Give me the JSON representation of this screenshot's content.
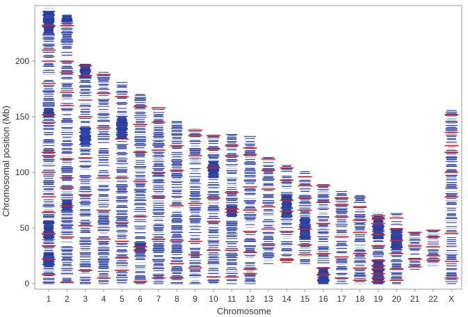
{
  "chart_data": {
    "type": "ideogram-band-chart",
    "title": "",
    "xlabel": "Chromosome",
    "ylabel": "Chromosomal position (Mb)",
    "ylim": [
      -5,
      250
    ],
    "yticks": [
      0,
      50,
      100,
      150,
      200
    ],
    "grid": false,
    "legend": null,
    "categories": [
      "1",
      "2",
      "3",
      "4",
      "5",
      "6",
      "7",
      "8",
      "9",
      "10",
      "11",
      "12",
      "13",
      "14",
      "15",
      "16",
      "17",
      "18",
      "19",
      "20",
      "21",
      "22",
      "X"
    ],
    "chromosome_length_mb": [
      248,
      242,
      198,
      190,
      181,
      171,
      159,
      146,
      140,
      135,
      135,
      133,
      114,
      107,
      101,
      90,
      83,
      80,
      64,
      64,
      47,
      50,
      156
    ],
    "band_start_mb": [
      0,
      0,
      0,
      0,
      0,
      0,
      0,
      0,
      0,
      0,
      0,
      0,
      18,
      18,
      18,
      0,
      0,
      0,
      0,
      0,
      12,
      15,
      0
    ],
    "colors": {
      "blue": "#2b3f9e",
      "red": "#d62020",
      "grey": "#b9bfd1",
      "axis": "#999999"
    },
    "red_bands_mb": {
      "1": [
        8,
        22,
        34,
        45,
        64,
        78,
        100,
        115,
        118,
        145,
        152,
        180,
        200,
        210,
        232
      ],
      "2": [
        1,
        42,
        70,
        86,
        95,
        112,
        160,
        172,
        190,
        200,
        232
      ],
      "3": [
        12,
        52,
        80,
        113,
        150,
        165,
        187,
        196
      ],
      "4": [
        5,
        40,
        66,
        95,
        140,
        171,
        188
      ],
      "5": [
        12,
        23,
        38,
        55,
        95,
        130,
        168
      ],
      "6": [
        2,
        30,
        33,
        60,
        92,
        118,
        143,
        159
      ],
      "7": [
        5,
        40,
        78,
        100,
        120,
        145,
        158
      ],
      "8": [
        5,
        18,
        39,
        70,
        102,
        124
      ],
      "9": [
        14,
        26,
        38,
        72,
        115,
        133,
        138
      ],
      "10": [
        6,
        30,
        56,
        77,
        104,
        121,
        133
      ],
      "11": [
        6,
        30,
        64,
        67,
        82,
        115,
        124
      ],
      "12": [
        9,
        13,
        28,
        47,
        66,
        87,
        116,
        122
      ],
      "13": [
        35,
        49,
        69,
        85,
        102,
        112
      ],
      "14": [
        21,
        22,
        47,
        65,
        75,
        93,
        104
      ],
      "15": [
        26,
        35,
        49,
        66,
        77,
        88,
        96
      ],
      "16": [
        8,
        14,
        27,
        54,
        73,
        88
      ],
      "17": [
        5,
        24,
        42,
        60,
        71,
        77
      ],
      "18": [
        3,
        14,
        27,
        46,
        57,
        69
      ],
      "19": [
        2,
        5,
        9,
        13,
        16,
        21,
        34,
        44,
        54,
        58,
        61
      ],
      "20": [
        3,
        13,
        27,
        39,
        49,
        59
      ],
      "21": [
        15,
        22,
        34,
        46
      ],
      "22": [
        21,
        25,
        33,
        42,
        48
      ],
      "X": [
        5,
        20,
        45,
        78,
        100,
        118,
        124,
        136,
        152
      ]
    },
    "dense_blue_regions_mb": {
      "1": [
        [
          15,
          28
        ],
        [
          40,
          56
        ],
        [
          150,
          158
        ],
        [
          225,
          245
        ]
      ],
      "2": [
        [
          65,
          75
        ],
        [
          235,
          242
        ]
      ],
      "3": [
        [
          125,
          140
        ],
        [
          185,
          198
        ]
      ],
      "5": [
        [
          130,
          150
        ]
      ],
      "6": [
        [
          28,
          36
        ]
      ],
      "10": [
        [
          95,
          110
        ]
      ],
      "11": [
        [
          60,
          70
        ]
      ],
      "14": [
        [
          60,
          80
        ]
      ],
      "15": [
        [
          40,
          60
        ]
      ],
      "16": [
        [
          0,
          15
        ]
      ],
      "19": [
        [
          0,
          20
        ],
        [
          40,
          60
        ]
      ],
      "20": [
        [
          30,
          50
        ]
      ]
    }
  }
}
